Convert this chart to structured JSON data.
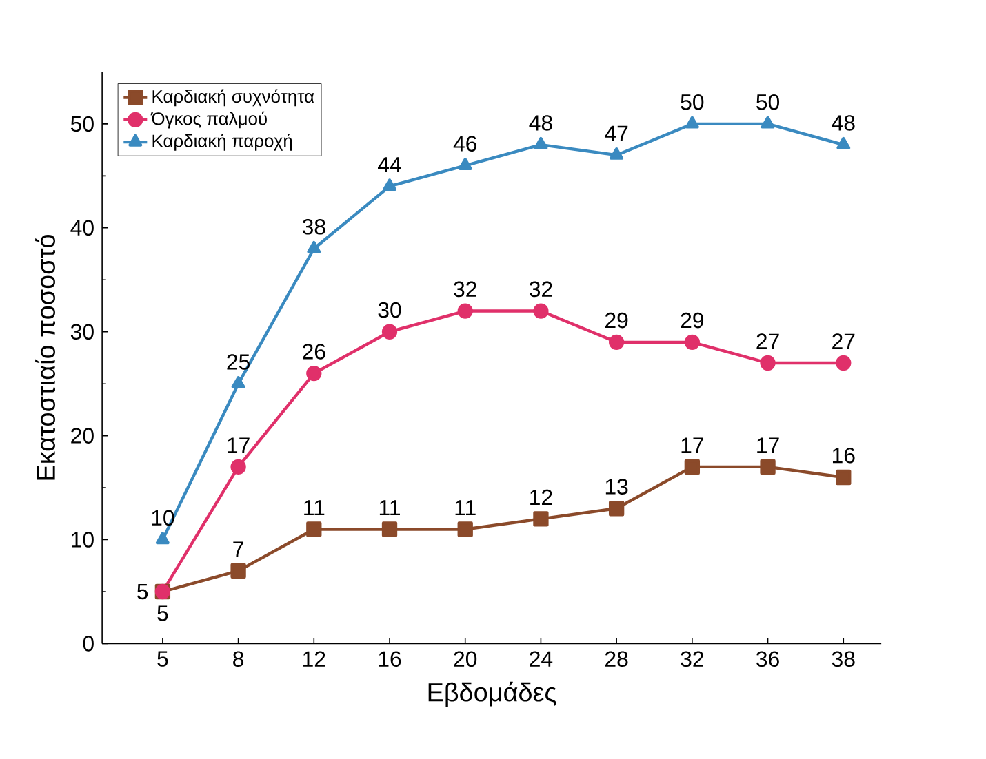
{
  "chart_data": {
    "type": "line",
    "xlabel": "Εβδομάδες",
    "ylabel": "Εκατοστιαίο ποσοστό",
    "categories": [
      "5",
      "8",
      "12",
      "16",
      "20",
      "24",
      "28",
      "32",
      "36",
      "38"
    ],
    "series": [
      {
        "name": "Καρδιακή συχνότητα",
        "color": "#8b4a2a",
        "marker": "square",
        "values": [
          5,
          7,
          11,
          11,
          11,
          12,
          13,
          17,
          17,
          16
        ]
      },
      {
        "name": "Όγκος παλμού",
        "color": "#e0306a",
        "marker": "circle",
        "values": [
          5,
          17,
          26,
          30,
          32,
          32,
          29,
          29,
          27,
          27
        ]
      },
      {
        "name": "Καρδιακή παροχή",
        "color": "#3a8ac0",
        "marker": "triangle",
        "values": [
          10,
          25,
          38,
          44,
          46,
          48,
          47,
          50,
          50,
          48
        ]
      }
    ],
    "ylim": [
      0,
      55
    ],
    "yticks": [
      0,
      10,
      20,
      30,
      40,
      50
    ],
    "data_labels": true,
    "legend": "top left",
    "grid": false
  }
}
